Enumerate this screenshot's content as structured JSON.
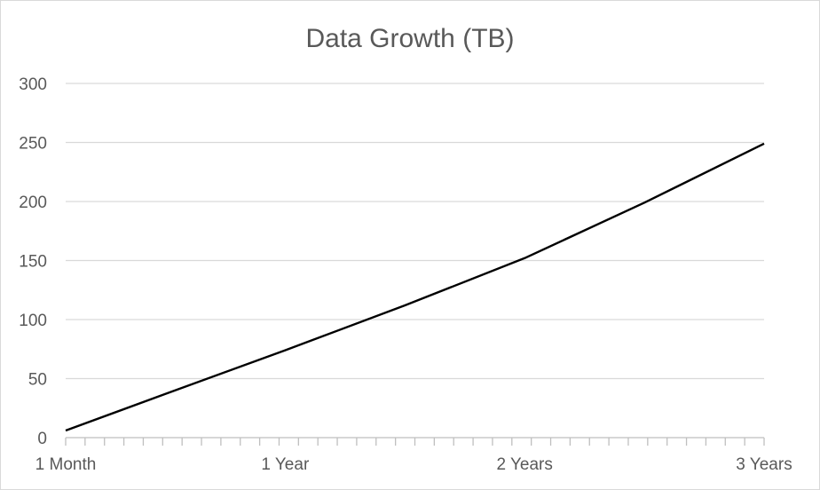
{
  "chart_data": {
    "type": "line",
    "title": "Data Growth (TB)",
    "xlabel": "",
    "ylabel": "",
    "ylim": [
      0,
      300
    ],
    "yticks": [
      0,
      50,
      100,
      150,
      200,
      250,
      300
    ],
    "x_tick_labels": [
      "1 Month",
      "1 Year",
      "2 Years",
      "3 Years"
    ],
    "x_months": [
      1,
      6,
      12,
      18,
      24,
      30,
      36
    ],
    "series": [
      {
        "values": [
          6,
          37,
          74,
          112,
          152,
          199,
          249
        ],
        "color": "#000000"
      }
    ],
    "grid": true,
    "legend": "none"
  }
}
